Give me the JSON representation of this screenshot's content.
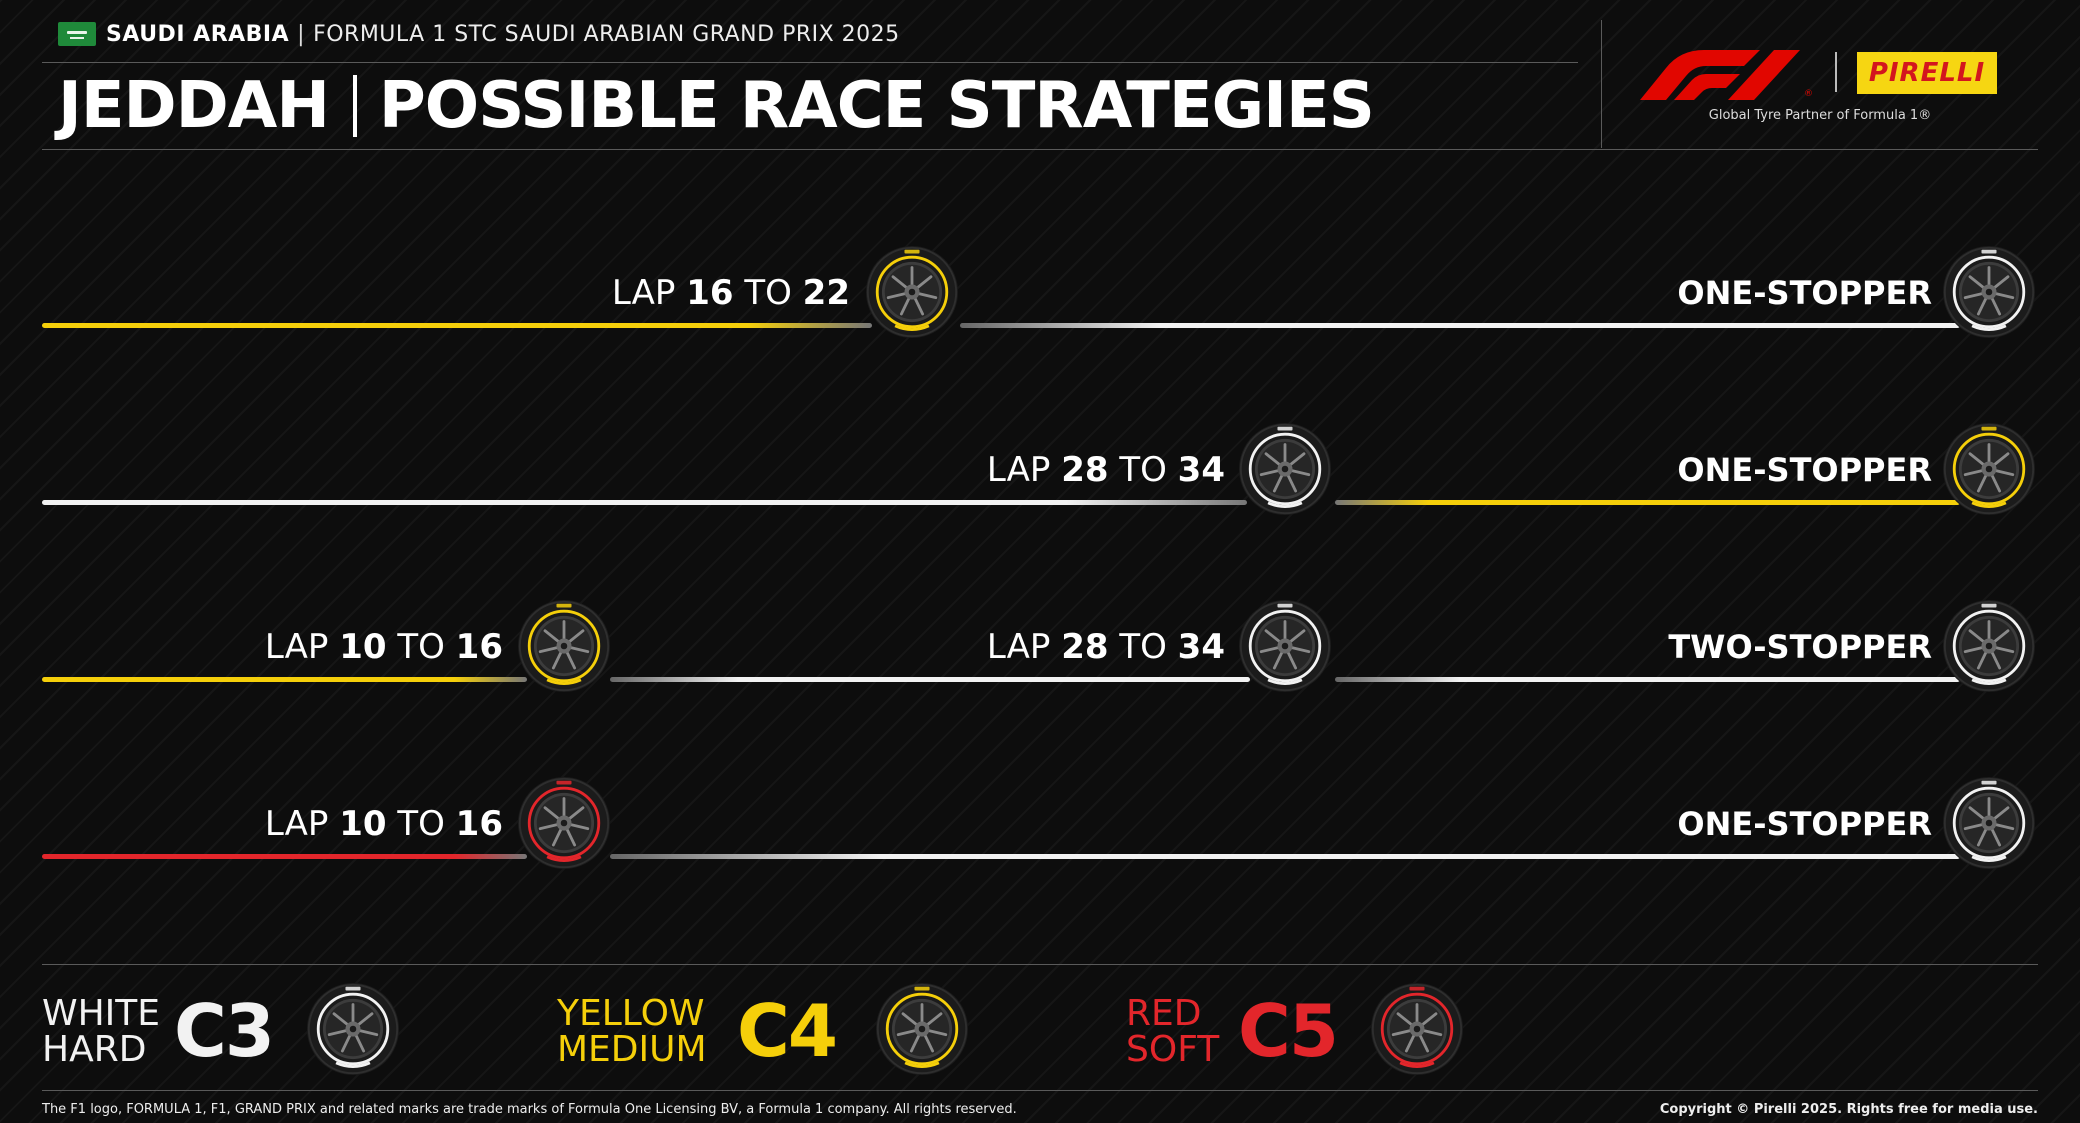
{
  "header": {
    "country": "SAUDI ARABIA",
    "separator": "|",
    "event": "FORMULA 1 STC SAUDI ARABIAN GRAND PRIX 2025",
    "title_left": "JEDDAH",
    "title_right": "POSSIBLE RACE STRATEGIES"
  },
  "branding": {
    "f1_logo": "f1-logo",
    "pirelli_logo": "PIRELLI",
    "tagline": "Global Tyre Partner of Formula 1®"
  },
  "compound_colors": {
    "hard": "#f2f2f2",
    "medium": "#f5cf0a",
    "soft": "#e3262b"
  },
  "strategies": [
    {
      "type": "ONE-STOPPER",
      "stints": [
        "medium",
        "hard"
      ],
      "stops": [
        {
          "lap_prefix": "LAP",
          "from": "16",
          "to_word": "TO",
          "to": "22",
          "new_tyre": "medium"
        }
      ],
      "end_tyre": "hard"
    },
    {
      "type": "ONE-STOPPER",
      "stints": [
        "hard",
        "medium"
      ],
      "stops": [
        {
          "lap_prefix": "LAP",
          "from": "28",
          "to_word": "TO",
          "to": "34",
          "new_tyre": "hard"
        }
      ],
      "end_tyre": "medium"
    },
    {
      "type": "TWO-STOPPER",
      "stints": [
        "medium",
        "hard",
        "hard"
      ],
      "stops": [
        {
          "lap_prefix": "LAP",
          "from": "10",
          "to_word": "TO",
          "to": "16",
          "new_tyre": "medium"
        },
        {
          "lap_prefix": "LAP",
          "from": "28",
          "to_word": "TO",
          "to": "34",
          "new_tyre": "hard"
        }
      ],
      "end_tyre": "hard"
    },
    {
      "type": "ONE-STOPPER",
      "stints": [
        "soft",
        "hard"
      ],
      "stops": [
        {
          "lap_prefix": "LAP",
          "from": "10",
          "to_word": "TO",
          "to": "16",
          "new_tyre": "soft"
        }
      ],
      "end_tyre": "hard"
    }
  ],
  "legend": [
    {
      "color_word": "WHITE",
      "hardness": "HARD",
      "code": "C3",
      "color": "#f2f2f2",
      "tyre": "hard"
    },
    {
      "color_word": "YELLOW",
      "hardness": "MEDIUM",
      "code": "C4",
      "color": "#f5cf0a",
      "tyre": "medium"
    },
    {
      "color_word": "RED",
      "hardness": "SOFT",
      "code": "C5",
      "color": "#e3262b",
      "tyre": "soft"
    }
  ],
  "footer": {
    "trademark": "The F1 logo, FORMULA 1, F1, GRAND PRIX and related marks are trade marks of Formula One Licensing BV, a Formula 1 company. All rights reserved.",
    "copyright": "Copyright © Pirelli 2025. Rights free for media use."
  }
}
